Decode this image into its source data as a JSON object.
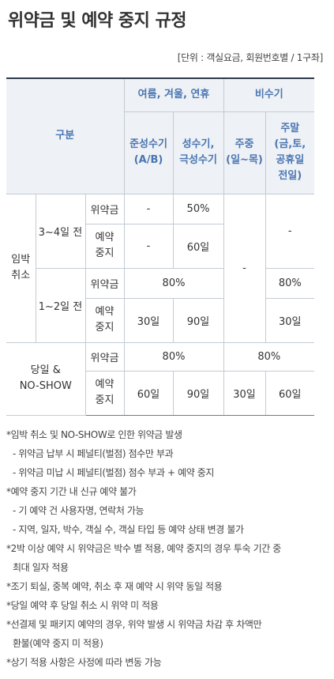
{
  "title": "위약금 및 예약 중지 규정",
  "unit_note": "[단위 : 객실요금, 회원번호별 / 1구좌]",
  "table": {
    "header_category": "구분",
    "header_peak": "여름, 겨울, 연휴",
    "header_offpeak": "비수기",
    "col_semi_peak": [
      "준성수기",
      "(A/B)"
    ],
    "col_peak": [
      "성수기,",
      "극성수기"
    ],
    "col_weekday": [
      "주중",
      "(일~목)"
    ],
    "col_weekend": [
      "주말",
      "(금,토,",
      "공휴일",
      "전일)"
    ],
    "imminent_cancel": [
      "임박",
      "취소"
    ],
    "days_3_4": "3~4일 전",
    "days_1_2": "1~2일 전",
    "same_day": [
      "당일 &",
      "NO-SHOW"
    ],
    "penalty": "위약금",
    "suspend": [
      "예약",
      "중지"
    ],
    "r1": {
      "semi": "-",
      "peak": "50%",
      "weekend": "-",
      "weekday_merged": "-"
    },
    "r2": {
      "semi": "-",
      "peak": "60일"
    },
    "r3": {
      "peak_merged": "80%",
      "weekend": "80%"
    },
    "r4": {
      "semi": "30일",
      "peak": "90일",
      "weekend": "30일"
    },
    "r5": {
      "peak_merged": "80%",
      "offpeak_merged": "80%"
    },
    "r6": {
      "semi": "60일",
      "peak": "90일",
      "weekday": "30일",
      "weekend": "60일"
    }
  },
  "notes": [
    "*임박 취소 및 NO-SHOW로 인한 위약금 발생",
    "- 위약금 납부 시 페널티(벌점) 점수만 부과",
    "- 위약금 미납 시 페널티(벌점) 점수 부과 + 예약 중지",
    "*예약 중지 기간 내 신규 예약 불가",
    "- 기 예약 건 사용자명, 연락처 가능",
    "- 지역, 일자, 박수, 객실 수, 객실 타입 등 예약 상태 변경 불가",
    "*2박 이상 예약 시 위약금은 박수 별 적용, 예약 중지의 경우 투숙 기간 중",
    "최대 일자 적용",
    "*조기 퇴실, 중복 예약, 취소 후 재 예약 시 위약 동일 적용",
    "*당일 예약 후 당일 취소 시 위약 미 적용",
    "*선결제 및 패키지 예약의 경우, 위약 발생 시 위약금 차감 후 차액만",
    "환불(예약 중지 미 적용)",
    "*상기 적용 사항은 사정에 따라 변동 가능"
  ]
}
